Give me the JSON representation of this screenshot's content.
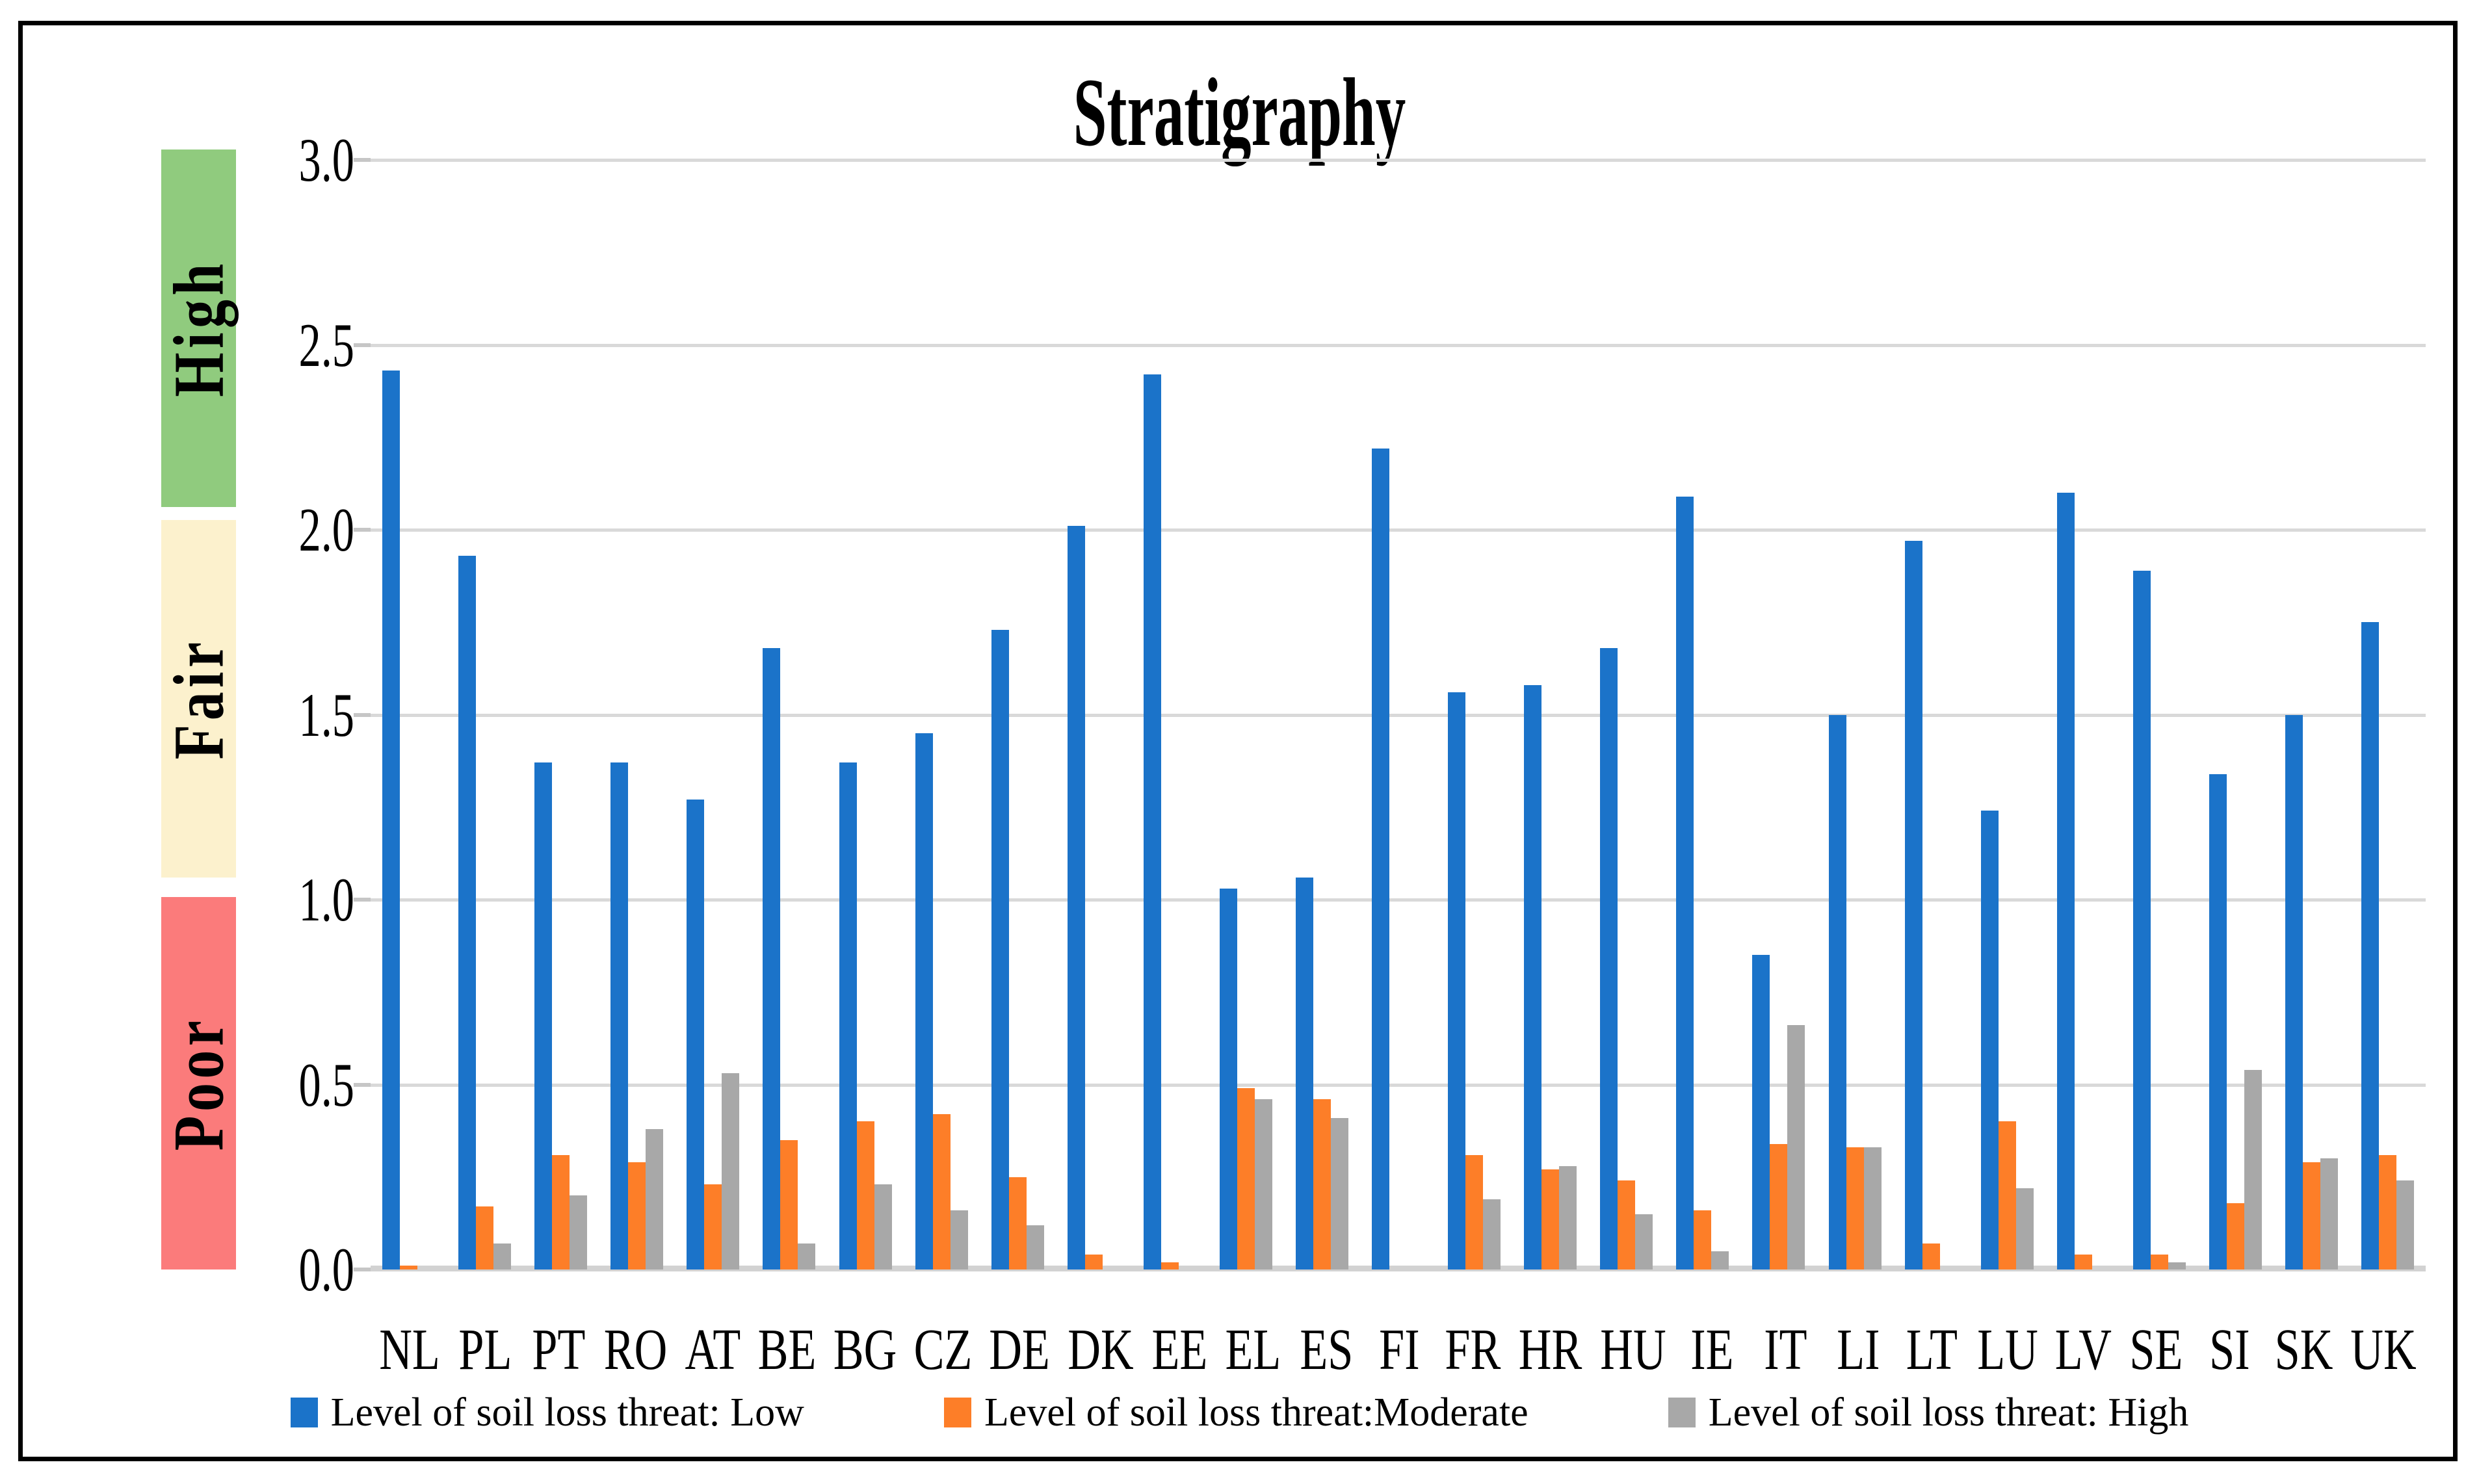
{
  "title": "Stratigraphy",
  "side_bands": [
    {
      "label": "High",
      "color": "#90CB7E"
    },
    {
      "label": "Fair",
      "color": "#FCF1CD"
    },
    {
      "label": "Poor",
      "color": "#FB7B7B"
    }
  ],
  "chart_data": {
    "type": "bar",
    "title": "Stratigraphy",
    "categories": [
      "NL",
      "PL",
      "PT",
      "RO",
      "AT",
      "BE",
      "BG",
      "CZ",
      "DE",
      "DK",
      "EE",
      "EL",
      "ES",
      "FI",
      "FR",
      "HR",
      "HU",
      "IE",
      "IT",
      "LI",
      "LT",
      "LU",
      "LV",
      "SE",
      "SI",
      "SK",
      "UK"
    ],
    "series": [
      {
        "key": "low",
        "name": "Level of soil loss threat: Low",
        "color": "#1B73C9",
        "values": [
          2.43,
          1.93,
          1.37,
          1.37,
          1.27,
          1.68,
          1.37,
          1.45,
          1.73,
          2.01,
          2.42,
          1.03,
          1.06,
          2.22,
          1.56,
          1.58,
          1.68,
          2.09,
          0.85,
          1.5,
          1.97,
          1.24,
          2.1,
          1.89,
          1.34,
          1.5,
          1.75
        ]
      },
      {
        "key": "moderate",
        "name": "Level of soil loss threat:Moderate",
        "color": "#FD7E28",
        "values": [
          0.01,
          0.17,
          0.31,
          0.29,
          0.23,
          0.35,
          0.4,
          0.42,
          0.25,
          0.04,
          0.02,
          0.49,
          0.46,
          0,
          0.31,
          0.27,
          0.24,
          0.16,
          0.34,
          0.33,
          0.07,
          0.4,
          0.04,
          0.04,
          0.18,
          0.29,
          0.31
        ]
      },
      {
        "key": "high",
        "name": "Level of soil loss threat: High",
        "color": "#A8A8A8",
        "values": [
          0,
          0.07,
          0.2,
          0.38,
          0.53,
          0.07,
          0.23,
          0.16,
          0.12,
          0,
          0,
          0.46,
          0.41,
          0,
          0.19,
          0.28,
          0.15,
          0.05,
          0.66,
          0.33,
          0,
          0.22,
          0,
          0.02,
          0.54,
          0.3,
          0.24
        ]
      }
    ],
    "xlabel": "",
    "ylabel": "",
    "ylim": [
      0,
      3
    ],
    "y_ticks": [
      "3.0",
      "2.5",
      "2.0",
      "1.5",
      "1.0",
      "0.5",
      "0.0"
    ],
    "grid": true,
    "legend_position": "bottom"
  }
}
